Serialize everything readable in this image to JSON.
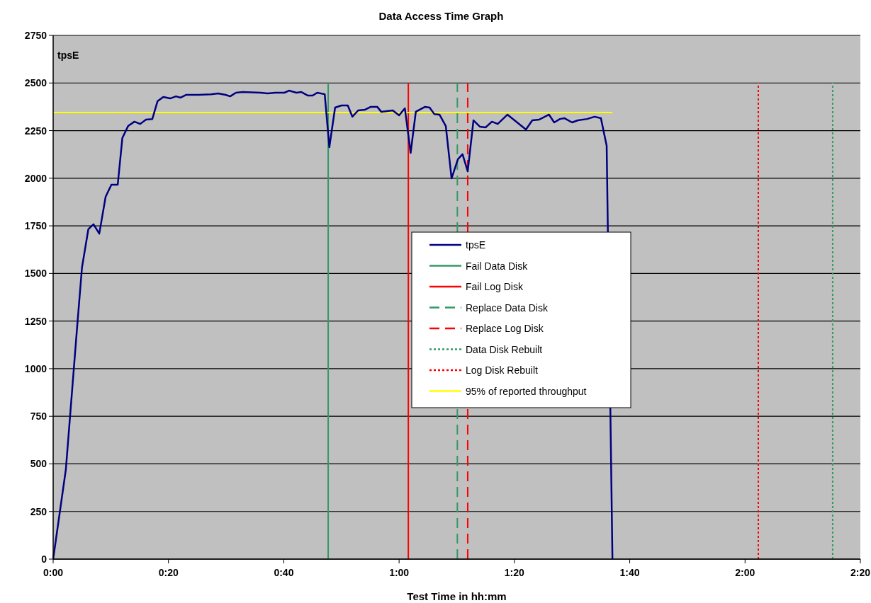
{
  "chart_data": {
    "type": "line",
    "title": "Data Access  Time Graph",
    "xlabel": "Test Time in hh:mm",
    "ylabel": "tpsE",
    "xlim": [
      0,
      140
    ],
    "xticks": [
      {
        "value": 0,
        "label": "0:00"
      },
      {
        "value": 20,
        "label": "0:20"
      },
      {
        "value": 40,
        "label": "0:40"
      },
      {
        "value": 60,
        "label": "1:00"
      },
      {
        "value": 80,
        "label": "1:20"
      },
      {
        "value": 100,
        "label": "1:40"
      },
      {
        "value": 120,
        "label": "2:00"
      },
      {
        "value": 140,
        "label": "2:20"
      }
    ],
    "ylim": [
      0,
      2750
    ],
    "yticks": [
      0,
      250,
      500,
      750,
      1000,
      1250,
      1500,
      1750,
      2000,
      2250,
      2500,
      2750
    ],
    "grid": "y",
    "legend": "center",
    "marker": "none",
    "series": [
      {
        "name": "tpsE",
        "color": "#000080",
        "line_style": "solid",
        "x": [
          0,
          2.2,
          4.1,
          5.0,
          6.1,
          7.0,
          8.0,
          9.1,
          10.1,
          11.2,
          12.0,
          13.0,
          14.1,
          15.1,
          16.1,
          17.2,
          18.1,
          19.1,
          20.3,
          21.3,
          22.1,
          23.1,
          25.2,
          27.4,
          28.6,
          29.9,
          30.7,
          31.7,
          32.9,
          36.0,
          37.2,
          38.5,
          40.1,
          40.9,
          42.2,
          43.0,
          44.2,
          45.0,
          45.8,
          47.1,
          47.9,
          48.9,
          50.0,
          51.1,
          51.9,
          52.9,
          54.1,
          55.1,
          56.2,
          56.9,
          58.9,
          60.0,
          61.0,
          62.0,
          62.9,
          64.5,
          65.3,
          66.1,
          67.0,
          68.1,
          69.1,
          70.2,
          71.0,
          71.9,
          72.9,
          74.0,
          75.0,
          76.1,
          77.1,
          78.8,
          82.0,
          83.1,
          84.3,
          86.0,
          86.9,
          87.9,
          88.7,
          90.0,
          91.0,
          92.6,
          93.9,
          95.0,
          96.0,
          97.0
        ],
        "values": [
          0,
          470,
          1197,
          1531,
          1732,
          1758,
          1709,
          1903,
          1966,
          1966,
          2211,
          2274,
          2297,
          2285,
          2308,
          2311,
          2404,
          2427,
          2419,
          2430,
          2423,
          2438,
          2438,
          2441,
          2445,
          2438,
          2430,
          2449,
          2453,
          2449,
          2445,
          2449,
          2449,
          2460,
          2449,
          2453,
          2434,
          2434,
          2449,
          2441,
          2163,
          2371,
          2382,
          2382,
          2323,
          2356,
          2360,
          2375,
          2375,
          2349,
          2356,
          2330,
          2367,
          2133,
          2349,
          2375,
          2371,
          2337,
          2334,
          2274,
          1999,
          2100,
          2126,
          2036,
          2304,
          2271,
          2267,
          2297,
          2285,
          2334,
          2256,
          2304,
          2308,
          2334,
          2293,
          2311,
          2315,
          2293,
          2304,
          2311,
          2323,
          2315,
          2170,
          0
        ]
      },
      {
        "name": "Fail Data Disk",
        "color": "#339966",
        "line_style": "solid",
        "x": [
          47.7,
          47.7
        ],
        "values": [
          0,
          2500
        ]
      },
      {
        "name": "Fail Log Disk",
        "color": "#ff0000",
        "line_style": "solid",
        "x": [
          61.6,
          61.6
        ],
        "values": [
          0,
          2500
        ]
      },
      {
        "name": "Replace Data Disk",
        "color": "#339966",
        "line_style": "dashed",
        "x": [
          70.1,
          70.1
        ],
        "values": [
          0,
          2500
        ]
      },
      {
        "name": "Replace Log Disk",
        "color": "#ff0000",
        "line_style": "dashed",
        "x": [
          71.9,
          71.9
        ],
        "values": [
          0,
          2500
        ]
      },
      {
        "name": "Data Disk Rebuilt",
        "color": "#339966",
        "line_style": "dotted",
        "x": [
          135.2,
          135.2
        ],
        "values": [
          0,
          2500
        ]
      },
      {
        "name": "Log Disk Rebuilt",
        "color": "#ff0000",
        "line_style": "dotted",
        "x": [
          122.3,
          122.3
        ],
        "values": [
          0,
          2500
        ]
      },
      {
        "name": "95% of reported throughput",
        "color": "#ffff00",
        "line_style": "solid",
        "x": [
          0,
          97
        ],
        "values": [
          2345,
          2345
        ]
      }
    ]
  }
}
